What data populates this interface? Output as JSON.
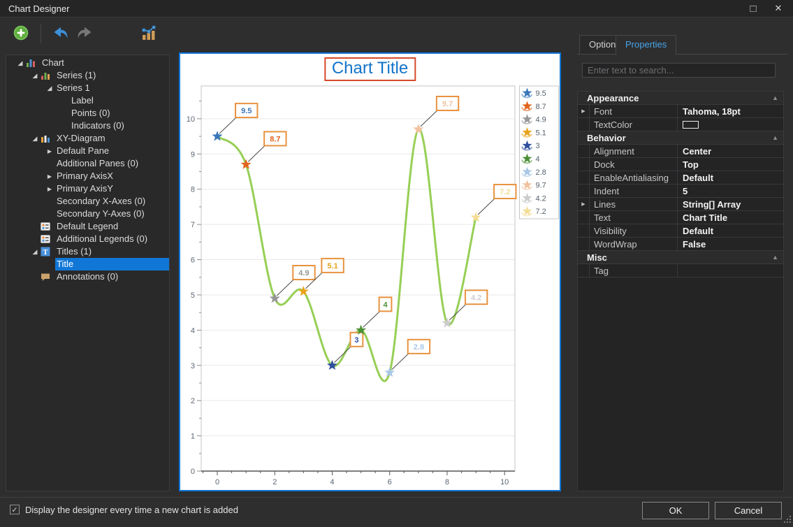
{
  "window": {
    "title": "Chart Designer",
    "maximize_glyph": "□",
    "close_glyph": "✕"
  },
  "toolbar": {
    "buttons": [
      {
        "name": "add-chart-element",
        "icon": "add-circle-icon"
      },
      {
        "name": "undo",
        "icon": "undo-arrow-icon"
      },
      {
        "name": "redo",
        "icon": "redo-arrow-icon"
      },
      {
        "name": "change-chart-type",
        "icon": "chart-bars-line-icon"
      }
    ]
  },
  "tree": {
    "items": [
      {
        "label": "Chart",
        "level": 0,
        "arrow": "open",
        "icon": "chart-icon",
        "selected": false
      },
      {
        "label": "Series (1)",
        "level": 1,
        "arrow": "open",
        "icon": "series-icon",
        "selected": false
      },
      {
        "label": "Series 1",
        "level": 2,
        "arrow": "open",
        "icon": null,
        "selected": false
      },
      {
        "label": "Label",
        "level": 3,
        "arrow": null,
        "icon": null,
        "selected": false
      },
      {
        "label": "Points (0)",
        "level": 3,
        "arrow": null,
        "icon": null,
        "selected": false
      },
      {
        "label": "Indicators (0)",
        "level": 3,
        "arrow": null,
        "icon": null,
        "selected": false
      },
      {
        "label": "XY-Diagram",
        "level": 1,
        "arrow": "open",
        "icon": "diagram-icon",
        "selected": false
      },
      {
        "label": "Default Pane",
        "level": 2,
        "arrow": "closed",
        "icon": null,
        "selected": false
      },
      {
        "label": "Additional Panes (0)",
        "level": 2,
        "arrow": null,
        "icon": null,
        "selected": false
      },
      {
        "label": "Primary AxisX",
        "level": 2,
        "arrow": "closed",
        "icon": null,
        "selected": false
      },
      {
        "label": "Primary AxisY",
        "level": 2,
        "arrow": "closed",
        "icon": null,
        "selected": false
      },
      {
        "label": "Secondary X-Axes (0)",
        "level": 2,
        "arrow": null,
        "icon": null,
        "selected": false
      },
      {
        "label": "Secondary Y-Axes (0)",
        "level": 2,
        "arrow": null,
        "icon": null,
        "selected": false
      },
      {
        "label": "Default Legend",
        "level": 1,
        "arrow": null,
        "icon": "legend-icon",
        "selected": false
      },
      {
        "label": "Additional Legends (0)",
        "level": 1,
        "arrow": null,
        "icon": "legend-icon",
        "selected": false
      },
      {
        "label": "Titles (1)",
        "level": 1,
        "arrow": "open",
        "icon": "titles-icon",
        "selected": false
      },
      {
        "label": "Title",
        "level": 2,
        "arrow": null,
        "icon": null,
        "selected": true
      },
      {
        "label": "Annotations (0)",
        "level": 1,
        "arrow": null,
        "icon": "annotation-icon",
        "selected": false
      }
    ]
  },
  "preview": {
    "title_text_color": "#1273c8",
    "title_selection_border_color": "#d6492a",
    "panel_border_color": "#1177d7"
  },
  "chart_data": {
    "type": "line",
    "title": "Chart Title",
    "x": [
      0,
      1,
      2,
      3,
      4,
      5,
      6,
      7,
      8,
      9
    ],
    "series": [
      {
        "name": "Series 1",
        "values": [
          9.5,
          8.7,
          4.9,
          5.1,
          3,
          4,
          2.8,
          9.7,
          4.2,
          7.2
        ]
      }
    ],
    "point_labels": [
      "9.5",
      "8.7",
      "4.9",
      "5.1",
      "3",
      "4",
      "2.8",
      "9.7",
      "4.2",
      "7.2"
    ],
    "legend_values": [
      "9.5",
      "8.7",
      "4.9",
      "5.1",
      "3",
      "4",
      "2.8",
      "9.7",
      "4.2",
      "7.2"
    ],
    "legend_position": "top-right",
    "marker": "star",
    "line_color": "#97cf56",
    "point_colors": [
      "#3a76b8",
      "#e2631d",
      "#969696",
      "#e7a31c",
      "#2d4f9e",
      "#4d9136",
      "#a9c7e6",
      "#f2c29e",
      "#cccccc",
      "#f4dd96"
    ],
    "label_border_color": "#e8923f",
    "x_ticks": [
      0,
      2,
      4,
      6,
      8,
      10
    ],
    "y_ticks": [
      0,
      1,
      2,
      3,
      4,
      5,
      6,
      7,
      8,
      9,
      10
    ],
    "xlim": [
      -0.56,
      10.36
    ],
    "ylim": [
      0,
      10.93
    ],
    "grid": "horizontal"
  },
  "properties_panel": {
    "tabs": [
      {
        "label": "Options",
        "active": false
      },
      {
        "label": "Properties",
        "active": true
      }
    ],
    "search_placeholder": "Enter text to search...",
    "groups": [
      {
        "name": "Appearance",
        "rows": [
          {
            "name": "Font",
            "value": "Tahoma, 18pt",
            "expander": true
          },
          {
            "name": "TextColor",
            "value": "",
            "swatch": "#ffffff"
          }
        ]
      },
      {
        "name": "Behavior",
        "rows": [
          {
            "name": "Alignment",
            "value": "Center"
          },
          {
            "name": "Dock",
            "value": "Top"
          },
          {
            "name": "EnableAntialiasing",
            "value": "Default"
          },
          {
            "name": "Indent",
            "value": "5"
          },
          {
            "name": "Lines",
            "value": "String[] Array",
            "expander": true
          },
          {
            "name": "Text",
            "value": "Chart Title"
          },
          {
            "name": "Visibility",
            "value": "Default"
          },
          {
            "name": "WordWrap",
            "value": "False"
          }
        ]
      },
      {
        "name": "Misc",
        "rows": [
          {
            "name": "Tag",
            "value": ""
          }
        ]
      }
    ]
  },
  "footer": {
    "checkbox_label": "Display the designer every time a new chart is added",
    "checkbox_checked": true,
    "check_glyph": "✓",
    "ok_label": "OK",
    "cancel_label": "Cancel"
  }
}
